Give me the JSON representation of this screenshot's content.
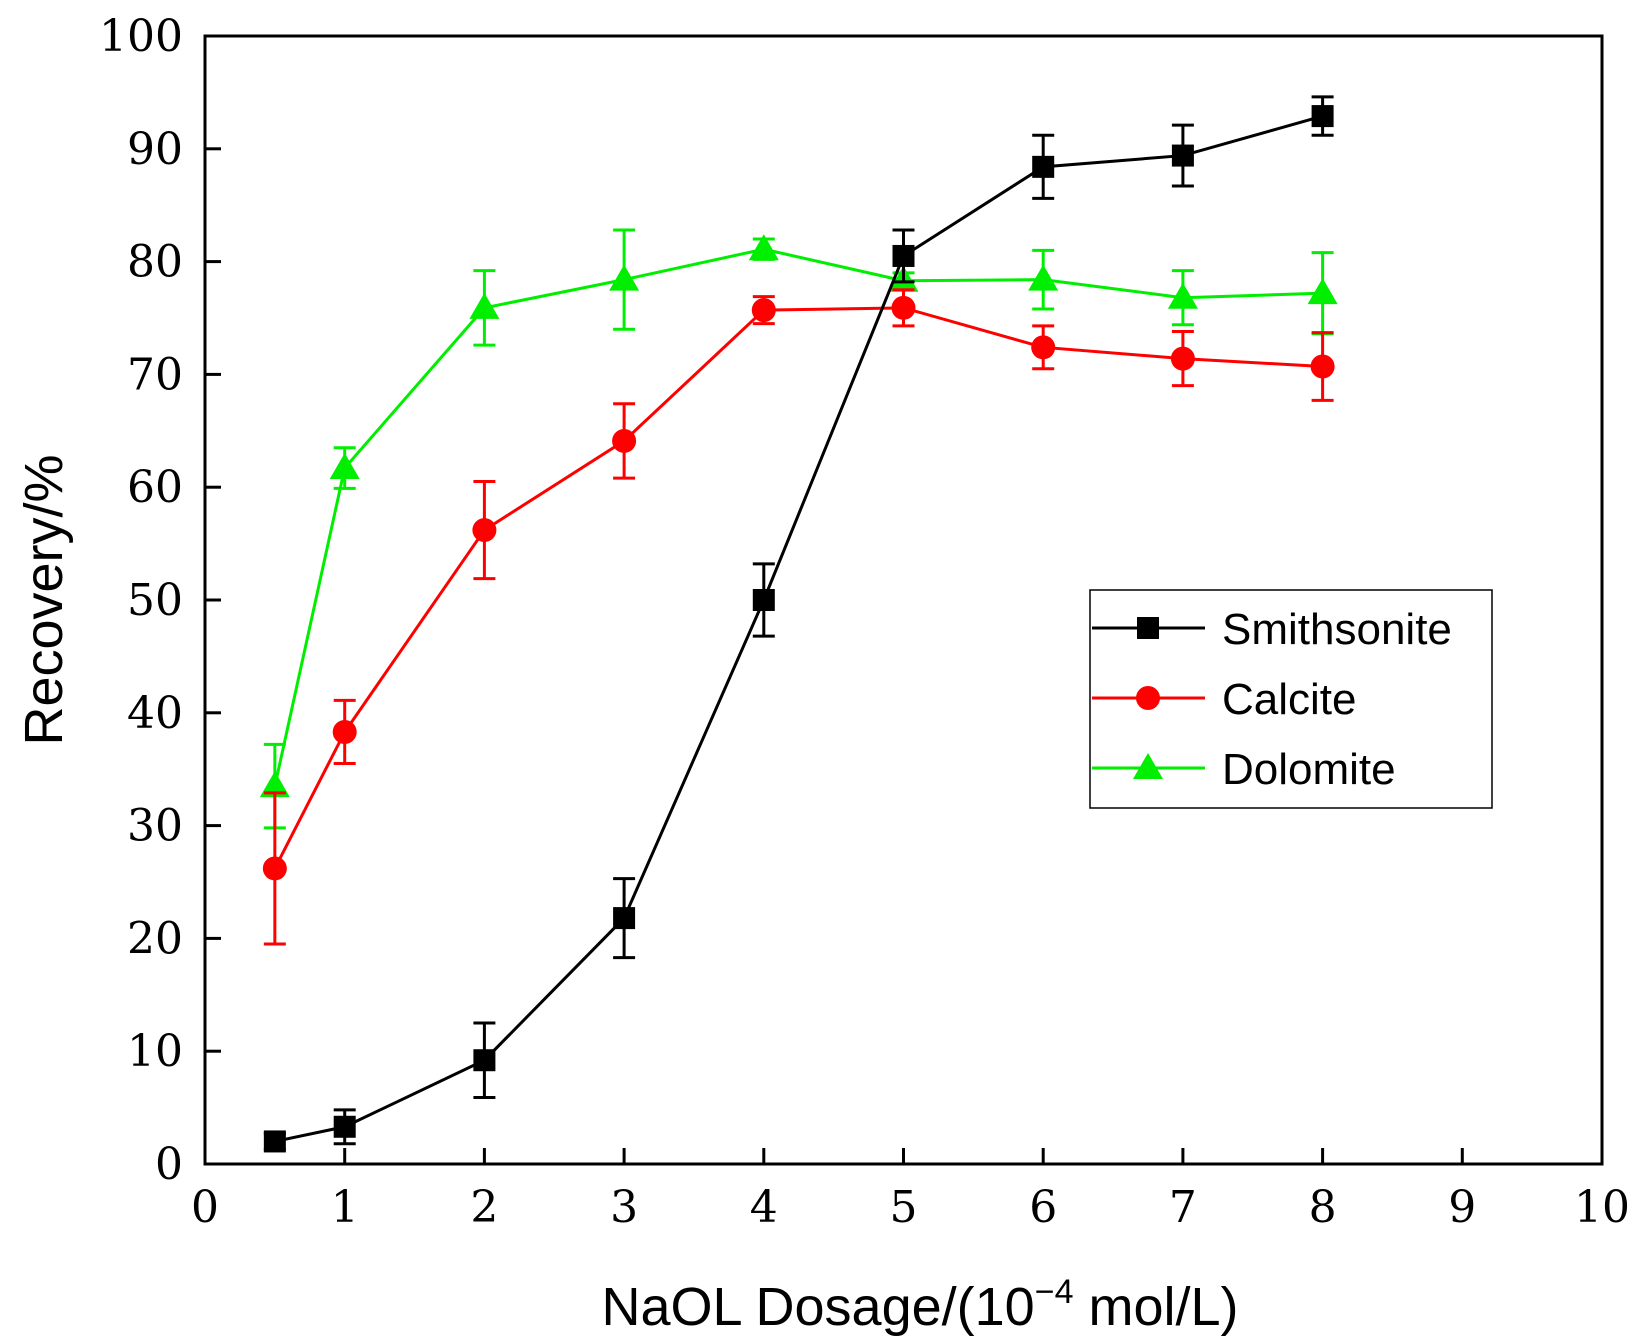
{
  "chart_data": {
    "type": "line",
    "title": "",
    "xlabel": {
      "main": "NaOL Dosage/(10",
      "sup": "−4",
      "tail": " mol/L)"
    },
    "ylabel": "Recovery/%",
    "xlim": [
      0,
      10
    ],
    "ylim": [
      0,
      100
    ],
    "xticks": [
      "0",
      "1",
      "2",
      "3",
      "4",
      "5",
      "6",
      "7",
      "8",
      "9",
      "10"
    ],
    "yticks": [
      "0",
      "10",
      "20",
      "30",
      "40",
      "50",
      "60",
      "70",
      "80",
      "90",
      "100"
    ],
    "legend_position": "center-right",
    "x": [
      0.5,
      1,
      2,
      3,
      4,
      5,
      6,
      7,
      8
    ],
    "series": [
      {
        "name": "Smithsonite",
        "color": "#000000",
        "marker": "square",
        "values": [
          2.0,
          3.3,
          9.2,
          21.8,
          50.0,
          80.5,
          88.4,
          89.4,
          92.9
        ],
        "errors": [
          0.7,
          1.5,
          3.3,
          3.5,
          3.2,
          2.3,
          2.8,
          2.7,
          1.7
        ]
      },
      {
        "name": "Calcite",
        "color": "#ff0000",
        "marker": "circle",
        "values": [
          26.2,
          38.3,
          56.2,
          64.1,
          75.7,
          75.9,
          72.4,
          71.4,
          70.7
        ],
        "errors": [
          6.7,
          2.8,
          4.3,
          3.3,
          1.2,
          1.6,
          1.9,
          2.4,
          3.0
        ]
      },
      {
        "name": "Dolomite",
        "color": "#00ee00",
        "marker": "triangle",
        "values": [
          33.5,
          61.7,
          75.9,
          78.4,
          81.1,
          78.3,
          78.4,
          76.8,
          77.2
        ],
        "errors": [
          3.7,
          1.8,
          3.3,
          4.4,
          0.9,
          0.7,
          2.6,
          2.4,
          3.6
        ]
      }
    ]
  }
}
